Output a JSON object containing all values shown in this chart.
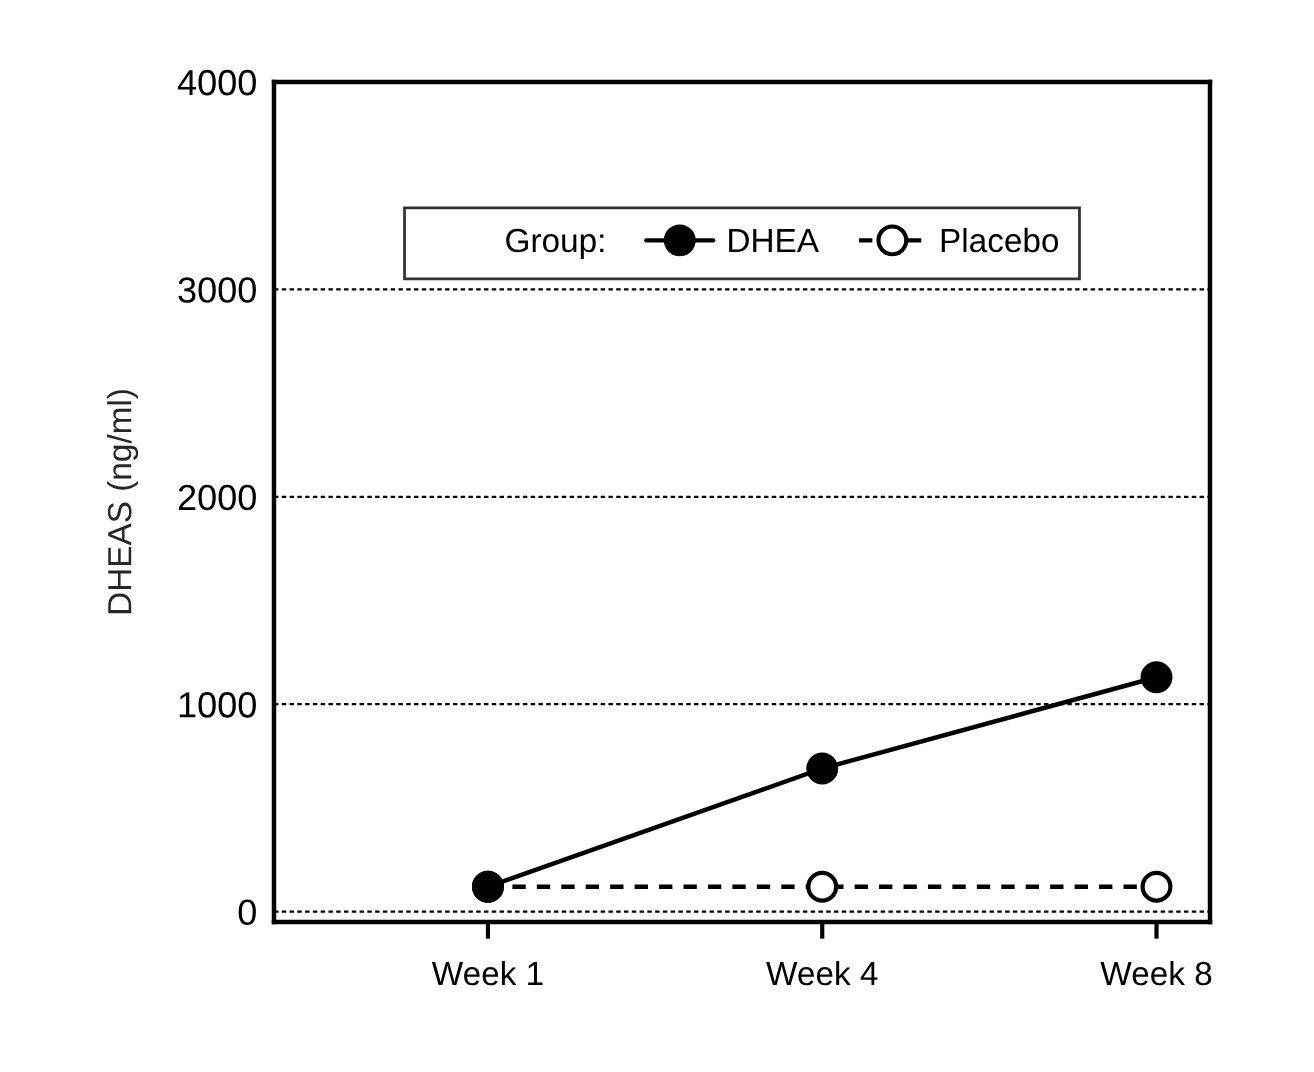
{
  "chart_data": {
    "type": "line",
    "ylabel": "DHEAS (ng/ml)",
    "legend_title": "Group:",
    "categories": [
      "Week 1",
      "Week 4",
      "Week 8"
    ],
    "series": [
      {
        "name": "DHEA",
        "color": "#000000",
        "values": [
          120,
          690,
          1130
        ],
        "marker": "circle",
        "line_style": "solid"
      },
      {
        "name": "Placebo",
        "color": "#000000",
        "values": [
          120,
          120,
          120
        ],
        "marker": "circle",
        "line_style": "dashed"
      }
    ],
    "ylim": [
      -50,
      4000
    ],
    "yticks": [
      0,
      1000,
      2000,
      3000,
      4000
    ],
    "grid": "y",
    "legend": "top"
  }
}
